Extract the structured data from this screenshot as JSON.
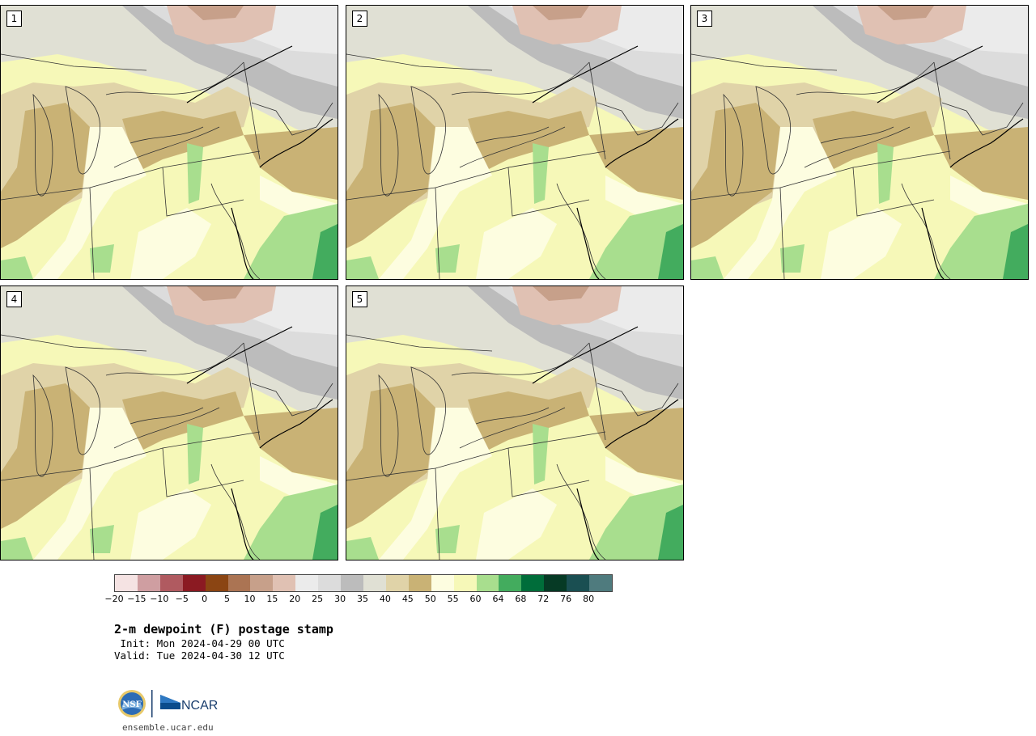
{
  "panels": [
    {
      "label": "1"
    },
    {
      "label": "2"
    },
    {
      "label": "3"
    },
    {
      "label": "4"
    },
    {
      "label": "5"
    }
  ],
  "colorbar": {
    "colors": [
      "#f5e3e3",
      "#cf9ea1",
      "#b05a60",
      "#8b1a22",
      "#8b4513",
      "#ab7453",
      "#c7a08a",
      "#e0c1b3",
      "#ebebeb",
      "#dcdcdc",
      "#bcbcbc",
      "#e0e0d4",
      "#e0d3a8",
      "#c9b275",
      "#fdfde0",
      "#f6f8b8",
      "#a8de8e",
      "#43ac5e",
      "#006d3a",
      "#063a25",
      "#1a4f52",
      "#4f7b7e"
    ],
    "tick_labels": [
      "−20",
      "−15",
      "−10",
      "−5",
      "0",
      "5",
      "10",
      "15",
      "20",
      "25",
      "30",
      "35",
      "40",
      "45",
      "50",
      "55",
      "60",
      "64",
      "68",
      "72",
      "76",
      "80"
    ]
  },
  "title": "2-m dewpoint (F) postage stamp",
  "init": " Init: Mon 2024-04-29 00 UTC",
  "valid": "Valid: Tue 2024-04-30 12 UTC",
  "logos": {
    "nsf": "NSF",
    "ncar": "NCAR"
  },
  "footer_url": "ensemble.ucar.edu"
}
